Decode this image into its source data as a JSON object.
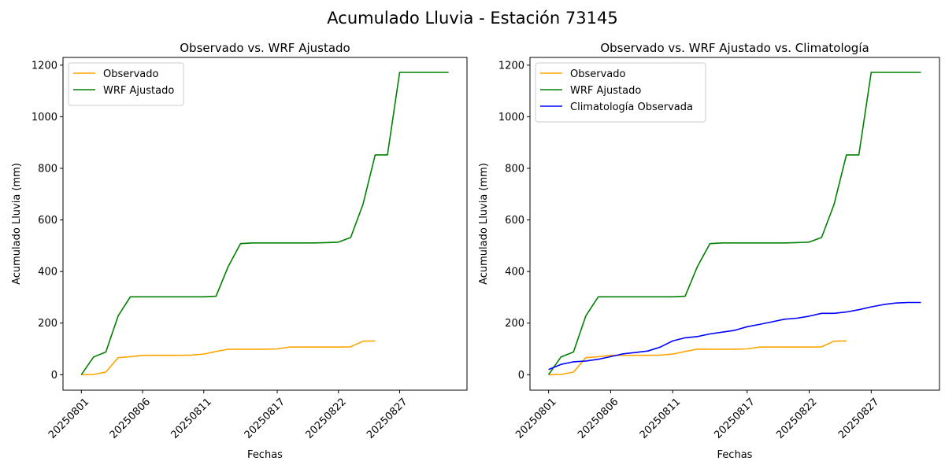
{
  "figure": {
    "suptitle": "Acumulado Lluvia - Estación 73145"
  },
  "colors": {
    "observado": "#ffa500",
    "wrf": "#008000",
    "clima": "#0000ff",
    "axis": "#000000"
  },
  "chart_data": [
    {
      "type": "line",
      "title": "Observado vs. WRF Ajustado",
      "xlabel": "Fechas",
      "ylabel": "Acumulado Lluvia (mm)",
      "ylim": [
        -60,
        1230
      ],
      "yticks": [
        0,
        200,
        400,
        600,
        800,
        1000,
        1200
      ],
      "xticks": [
        "20250801",
        "20250806",
        "20250811",
        "20250817",
        "20250822",
        "20250827"
      ],
      "grid": false,
      "legend_position": "top-left",
      "x_start_date": "20250801",
      "series": [
        {
          "name": "Observado",
          "color_key": "observado",
          "x": [
            "20250801",
            "20250802",
            "20250803",
            "20250804",
            "20250805",
            "20250806",
            "20250807",
            "20250808",
            "20250809",
            "20250810",
            "20250811",
            "20250812",
            "20250813",
            "20250814",
            "20250815",
            "20250816",
            "20250817",
            "20250818",
            "20250819",
            "20250820",
            "20250821",
            "20250822",
            "20250823",
            "20250824",
            "20250825"
          ],
          "values": [
            0,
            1,
            10,
            66,
            70,
            75,
            75,
            75,
            75,
            76,
            80,
            90,
            99,
            99,
            99,
            99,
            100,
            107,
            107,
            107,
            107,
            107,
            108,
            130,
            131
          ]
        },
        {
          "name": "WRF Ajustado",
          "color_key": "wrf",
          "x": [
            "20250801",
            "20250802",
            "20250803",
            "20250804",
            "20250805",
            "20250806",
            "20250807",
            "20250808",
            "20250809",
            "20250810",
            "20250811",
            "20250812",
            "20250813",
            "20250814",
            "20250815",
            "20250816",
            "20250817",
            "20250818",
            "20250819",
            "20250820",
            "20250821",
            "20250822",
            "20250823",
            "20250824",
            "20250825",
            "20250826",
            "20250827",
            "20250828",
            "20250829",
            "20250830",
            "20250831"
          ],
          "values": [
            0,
            69,
            88,
            228,
            302,
            302,
            302,
            302,
            302,
            302,
            302,
            304,
            420,
            508,
            511,
            511,
            511,
            511,
            511,
            511,
            512,
            514,
            532,
            660,
            852,
            852,
            1172,
            1172,
            1172,
            1172,
            1172
          ]
        }
      ]
    },
    {
      "type": "line",
      "title": "Observado vs. WRF Ajustado vs. Climatología",
      "xlabel": "Fechas",
      "ylabel": "Acumulado Lluvia (mm)",
      "ylim": [
        -60,
        1230
      ],
      "yticks": [
        0,
        200,
        400,
        600,
        800,
        1000,
        1200
      ],
      "xticks": [
        "20250801",
        "20250806",
        "20250811",
        "20250817",
        "20250822",
        "20250827"
      ],
      "grid": false,
      "legend_position": "top-left",
      "x_start_date": "20250801",
      "series": [
        {
          "name": "Observado",
          "color_key": "observado",
          "x": [
            "20250801",
            "20250802",
            "20250803",
            "20250804",
            "20250805",
            "20250806",
            "20250807",
            "20250808",
            "20250809",
            "20250810",
            "20250811",
            "20250812",
            "20250813",
            "20250814",
            "20250815",
            "20250816",
            "20250817",
            "20250818",
            "20250819",
            "20250820",
            "20250821",
            "20250822",
            "20250823",
            "20250824",
            "20250825"
          ],
          "values": [
            0,
            1,
            10,
            66,
            70,
            75,
            75,
            75,
            75,
            76,
            80,
            90,
            99,
            99,
            99,
            99,
            100,
            107,
            107,
            107,
            107,
            107,
            108,
            130,
            131
          ]
        },
        {
          "name": "WRF Ajustado",
          "color_key": "wrf",
          "x": [
            "20250801",
            "20250802",
            "20250803",
            "20250804",
            "20250805",
            "20250806",
            "20250807",
            "20250808",
            "20250809",
            "20250810",
            "20250811",
            "20250812",
            "20250813",
            "20250814",
            "20250815",
            "20250816",
            "20250817",
            "20250818",
            "20250819",
            "20250820",
            "20250821",
            "20250822",
            "20250823",
            "20250824",
            "20250825",
            "20250826",
            "20250827",
            "20250828",
            "20250829",
            "20250830",
            "20250831"
          ],
          "values": [
            0,
            69,
            88,
            228,
            302,
            302,
            302,
            302,
            302,
            302,
            302,
            304,
            420,
            508,
            511,
            511,
            511,
            511,
            511,
            511,
            512,
            514,
            532,
            660,
            852,
            852,
            1172,
            1172,
            1172,
            1172,
            1172
          ]
        },
        {
          "name": "Climatología Observada",
          "color_key": "clima",
          "x": [
            "20250801",
            "20250802",
            "20250803",
            "20250804",
            "20250805",
            "20250806",
            "20250807",
            "20250808",
            "20250809",
            "20250810",
            "20250811",
            "20250812",
            "20250813",
            "20250814",
            "20250815",
            "20250816",
            "20250817",
            "20250818",
            "20250819",
            "20250820",
            "20250821",
            "20250822",
            "20250823",
            "20250824",
            "20250825",
            "20250826",
            "20250827",
            "20250828",
            "20250829",
            "20250830",
            "20250831"
          ],
          "values": [
            20,
            40,
            50,
            53,
            60,
            70,
            81,
            86,
            92,
            107,
            131,
            143,
            148,
            158,
            165,
            172,
            186,
            195,
            205,
            215,
            219,
            227,
            238,
            238,
            243,
            252,
            263,
            272,
            278,
            280,
            280
          ]
        }
      ]
    }
  ]
}
